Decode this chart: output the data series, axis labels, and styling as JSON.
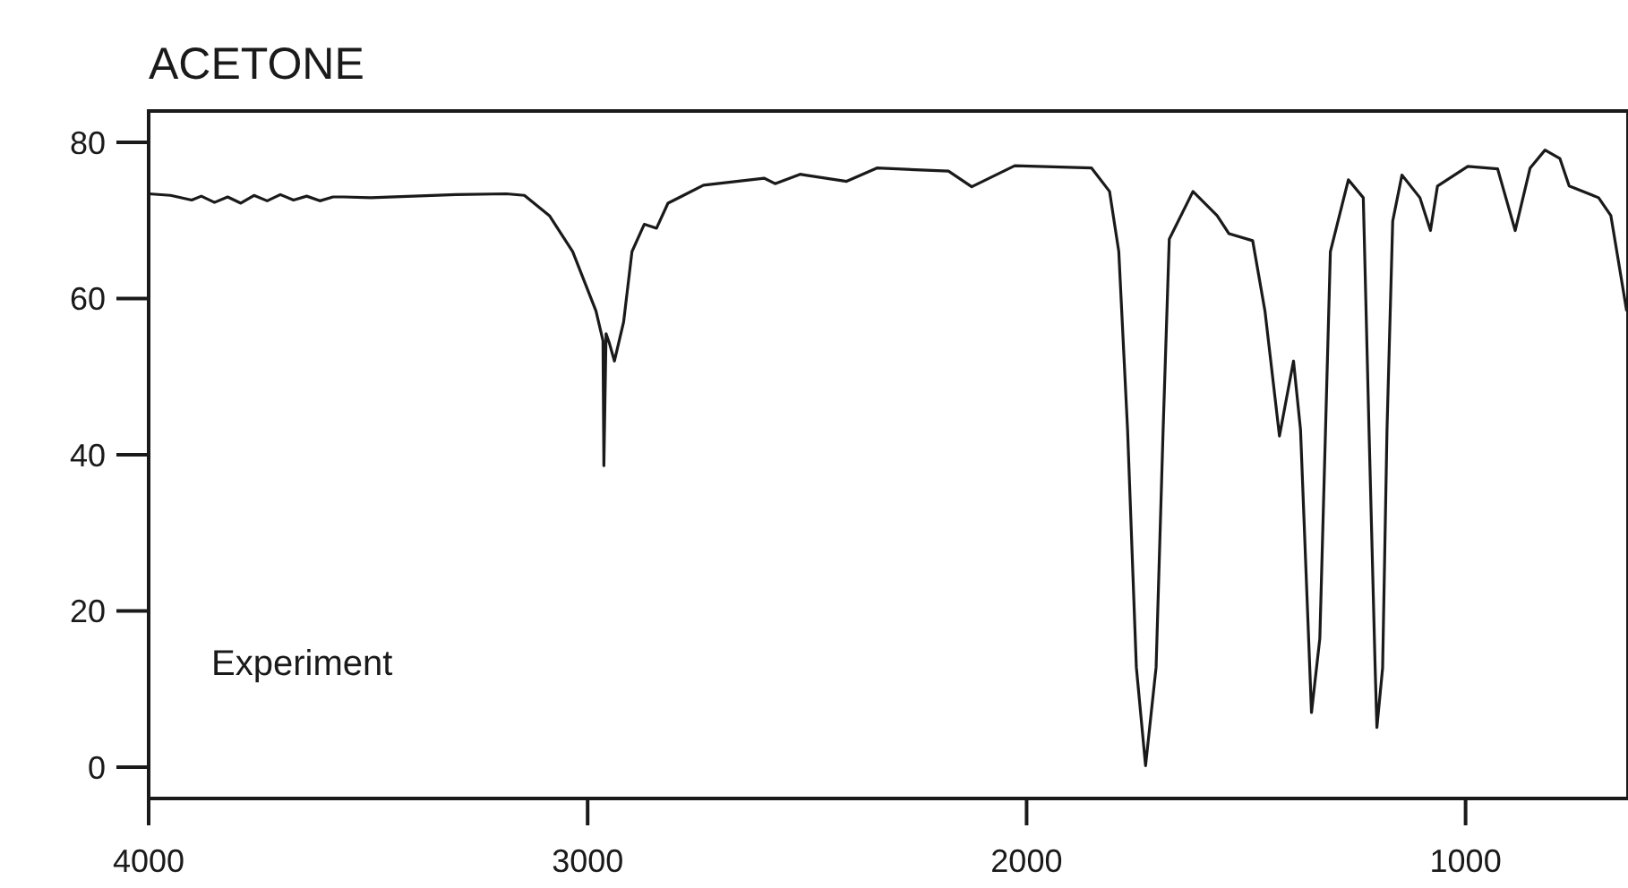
{
  "chart_data": {
    "type": "line",
    "title": "ACETONE",
    "annotations": [
      "Experiment"
    ],
    "x": [
      4000,
      3950,
      3902,
      3880,
      3850,
      3820,
      3790,
      3760,
      3730,
      3700,
      3670,
      3640,
      3610,
      3580,
      3556,
      3494,
      3300,
      3185,
      3144,
      3087,
      3034,
      2981,
      2965,
      2963,
      2958,
      2950,
      2939,
      2918,
      2899,
      2871,
      2843,
      2817,
      2736,
      2598,
      2573,
      2516,
      2504,
      2410,
      2341,
      2178,
      2125,
      2027,
      1852,
      1811,
      1790,
      1770,
      1750,
      1729,
      1705,
      1689,
      1675,
      1621,
      1566,
      1539,
      1485,
      1457,
      1424,
      1392,
      1376,
      1351,
      1332,
      1308,
      1267,
      1233,
      1220,
      1206,
      1202,
      1189,
      1179,
      1166,
      1145,
      1104,
      1080,
      1064,
      995,
      927,
      887,
      853,
      819,
      785,
      764,
      697,
      669,
      633
    ],
    "series": [
      {
        "color": "#1a1a1a",
        "values": [
          73.4,
          73.2,
          72.6,
          73.1,
          72.3,
          73.0,
          72.2,
          73.2,
          72.5,
          73.3,
          72.6,
          73.1,
          72.5,
          73.0,
          73.0,
          72.9,
          73.3,
          73.4,
          73.2,
          70.6,
          66,
          58.4,
          54.6,
          38.6,
          55.5,
          54.2,
          52,
          57,
          66,
          69.5,
          69,
          72.2,
          74.5,
          75.4,
          74.7,
          75.9,
          75.8,
          75.0,
          76.7,
          76.3,
          74.3,
          77,
          76.7,
          73.7,
          66,
          43.2,
          12.8,
          0.2,
          12.8,
          43.2,
          67.6,
          73.7,
          70.6,
          68.3,
          67.4,
          58.4,
          42.4,
          52,
          43.2,
          7,
          16.5,
          66,
          75.2,
          72.9,
          43.2,
          12.7,
          5.1,
          12.7,
          43.2,
          69.9,
          75.8,
          72.9,
          68.7,
          74.4,
          76.9,
          76.6,
          68.7,
          76.7,
          79,
          77.9,
          74.4,
          72.9,
          70.6,
          58.4
        ]
      }
    ],
    "xlim": [
      4000,
      630
    ],
    "ylim": [
      -4,
      84
    ],
    "xticks": [
      4000,
      3000,
      2000,
      1000
    ],
    "yticks": [
      0,
      20,
      40,
      60,
      80
    ],
    "grid": false,
    "marker": "none",
    "line_style": "solid"
  }
}
